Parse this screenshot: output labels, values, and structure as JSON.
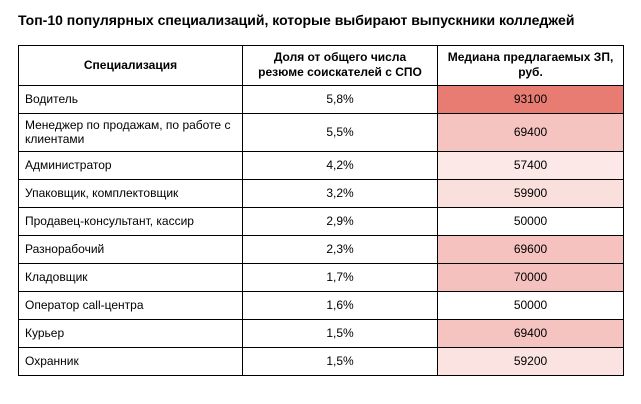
{
  "title": "Топ-10 популярных специализаций, которые выбирают выпускники колледжей",
  "table": {
    "columns": [
      {
        "label": "Специализация"
      },
      {
        "label": "Доля от общего числа резюме соискателей с СПО"
      },
      {
        "label": "Медиана предлагаемых ЗП, руб."
      }
    ],
    "rows": [
      {
        "specialization": "Водитель",
        "share": "5,8%",
        "median_salary": "93100",
        "salary_bg": "#E87C72"
      },
      {
        "specialization": "Менеджер по продажам, по работе с клиентами",
        "share": "5,5%",
        "median_salary": "69400",
        "salary_bg": "#F5C3C0"
      },
      {
        "specialization": "Администратор",
        "share": "4,2%",
        "median_salary": "57400",
        "salary_bg": "#FBE8E7"
      },
      {
        "specialization": "Упаковщик, комплектовщик",
        "share": "3,2%",
        "median_salary": "59900",
        "salary_bg": "#FAE0DD"
      },
      {
        "specialization": "Продавец-консультант, кассир",
        "share": "2,9%",
        "median_salary": "50000",
        "salary_bg": "#FFFFFF"
      },
      {
        "specialization": "Разнорабочий",
        "share": "2,3%",
        "median_salary": "69600",
        "salary_bg": "#F5C2BF"
      },
      {
        "specialization": "Кладовщик",
        "share": "1,7%",
        "median_salary": "70000",
        "salary_bg": "#F4C1BE"
      },
      {
        "specialization": "Оператор call-центра",
        "share": "1,6%",
        "median_salary": "50000",
        "salary_bg": "#FFFFFF"
      },
      {
        "specialization": "Курьер",
        "share": "1,5%",
        "median_salary": "69400",
        "salary_bg": "#F5C3C0"
      },
      {
        "specialization": "Охранник",
        "share": "1,5%",
        "median_salary": "59200",
        "salary_bg": "#FAE3E1"
      }
    ]
  },
  "chart_data": {
    "type": "table",
    "title": "Топ-10 популярных специализаций, которые выбирают выпускники колледжей",
    "columns": [
      "Специализация",
      "Доля от общего числа резюме соискателей с СПО",
      "Медиана предлагаемых ЗП, руб."
    ],
    "rows": [
      [
        "Водитель",
        5.8,
        93100
      ],
      [
        "Менеджер по продажам, по работе с клиентами",
        5.5,
        69400
      ],
      [
        "Администратор",
        4.2,
        57400
      ],
      [
        "Упаковщик, комплектовщик",
        3.2,
        59900
      ],
      [
        "Продавец-консультант, кассир",
        2.9,
        50000
      ],
      [
        "Разнорабочий",
        2.3,
        69600
      ],
      [
        "Кладовщик",
        1.7,
        70000
      ],
      [
        "Оператор call-центра",
        1.6,
        50000
      ],
      [
        "Курьер",
        1.5,
        69400
      ],
      [
        "Охранник",
        1.5,
        59200
      ]
    ],
    "share_unit": "%",
    "heatmap": {
      "column": "Медиана предлагаемых ЗП, руб.",
      "min_value": 50000,
      "min_color": "#FFFFFF",
      "max_value": 93100,
      "max_color": "#E87C72"
    },
    "layout": {
      "grid": true,
      "border_color": "#000000",
      "header_bold": true,
      "legend": "none"
    }
  }
}
